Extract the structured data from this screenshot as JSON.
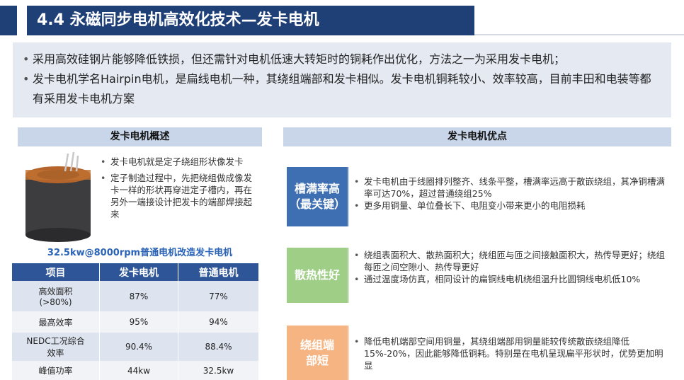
{
  "header": {
    "title": "4.4 永磁同步电机高效化技术—发卡电机"
  },
  "intro": [
    "采用高效硅钢片能够降低铁损，但还需针对电机低速大转矩时的铜耗作出优化，方法之一为采用发卡电机；",
    "发卡电机学名Hairpin电机，是扁线电机一种，其绕组端部和发卡相似。发卡电机铜耗较小、效率较高，目前丰田和电装等都有采用发卡电机方案"
  ],
  "overview": {
    "heading": "发卡电机概述",
    "points": [
      "发卡电机就是定子绕组形状像发卡",
      "定子制造过程中，先把绕组做成像发卡一样的形状再穿进定子槽内，再在另外一端接设计把发卡的端部焊接起来"
    ],
    "caption": "32.5kw@8000rpm普通电机改造发卡电机",
    "table": {
      "columns": [
        "项目",
        "发卡电机",
        "普通电机"
      ],
      "rows": [
        [
          "高效面积\n(>80%)",
          "87%",
          "77%"
        ],
        [
          "最高效率",
          "95%",
          "94%"
        ],
        [
          "NEDC工况综合\n效率",
          "90.4%",
          "88.4%"
        ],
        [
          "峰值功率",
          "44kw",
          "32.5kw"
        ]
      ]
    }
  },
  "advantages": {
    "heading": "发卡电机优点",
    "items": [
      {
        "label": "槽满率高\n（最关键）",
        "points": [
          "发卡电机由于线圈排列整齐、线条平整，槽满率远高于散嵌绕组，其净铜槽满率可达70%，超过普通绕组25%",
          "更多用铜量、单位叠长下、电阻变小带来更小的电阻损耗"
        ]
      },
      {
        "label": "散热性好",
        "points": [
          "绕组表面积大、散热面积大；绕组匝与匝之间接触面积大，热传导更好；绕组每匝之间空隙小、热传导更好",
          "通过温度场仿真，相同设计的扁铜线电机绕组温升比圆铜线电机低10%"
        ]
      },
      {
        "label": "绕组端\n部短",
        "points": [
          "降低电机端部空间用铜量，其绕组端部用铜量能较传统散嵌绕组降低15%-20%，因此能够降低铜耗。特别是在电机呈现扁平形状时，优势更加明显"
        ]
      }
    ]
  }
}
